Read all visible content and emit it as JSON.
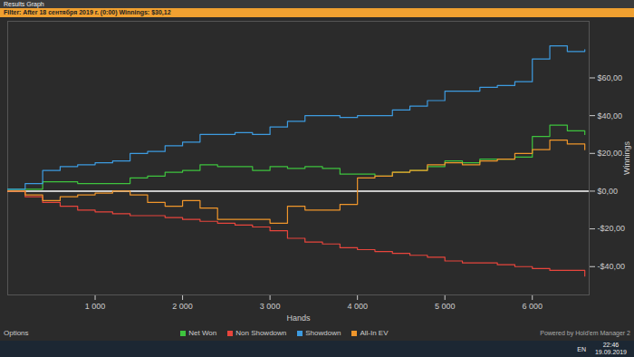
{
  "window": {
    "title": "Results Graph",
    "filter": "Filter: After 18 сентября 2019 г. (0:00)  Winnings: $30,12",
    "options": "Options",
    "powered_by": "Powered by Hold'em Manager 2",
    "language": "EN",
    "time": "22:46",
    "date": "19.09.2019"
  },
  "chart_data": {
    "type": "line",
    "xlabel": "Hands",
    "ylabel": "Winnings",
    "x": [
      0,
      200,
      400,
      600,
      800,
      1000,
      1200,
      1400,
      1600,
      1800,
      2000,
      2200,
      2400,
      2600,
      2800,
      3000,
      3200,
      3400,
      3600,
      3800,
      4000,
      4200,
      4400,
      4600,
      4800,
      5000,
      5200,
      5400,
      5600,
      5800,
      6000,
      6200,
      6400,
      6600
    ],
    "series": [
      {
        "name": "Net Won",
        "color": "#3ec43e",
        "values": [
          1,
          1,
          5,
          5,
          4,
          4,
          4,
          7,
          8,
          10,
          11,
          14,
          13,
          13,
          11,
          13,
          12,
          13,
          12,
          9,
          9,
          8,
          10,
          11,
          13,
          16,
          15,
          17,
          17,
          18,
          29,
          35,
          32,
          30
        ]
      },
      {
        "name": "Non Showdown",
        "color": "#e8453c",
        "values": [
          0,
          -3,
          -6,
          -8,
          -10,
          -11,
          -12,
          -13,
          -13,
          -14,
          -15,
          -16,
          -17,
          -18,
          -19,
          -21,
          -25,
          -27,
          -28,
          -30,
          -31,
          -32,
          -33,
          -34,
          -35,
          -37,
          -38,
          -38,
          -39,
          -40,
          -41,
          -42,
          -42,
          -45
        ]
      },
      {
        "name": "Showdown",
        "color": "#3d9be0",
        "values": [
          1,
          4,
          11,
          13,
          14,
          15,
          16,
          20,
          21,
          24,
          26,
          30,
          30,
          31,
          30,
          34,
          37,
          40,
          40,
          39,
          40,
          40,
          43,
          45,
          48,
          53,
          53,
          55,
          56,
          58,
          70,
          77,
          74,
          75
        ]
      },
      {
        "name": "All-In EV",
        "color": "#f0962b",
        "values": [
          0,
          -2,
          -5,
          -3,
          -2,
          -1,
          0,
          -2,
          -6,
          -8,
          -5,
          -9,
          -15,
          -15,
          -15,
          -17,
          -8,
          -10,
          -10,
          -7,
          7,
          8,
          10,
          11,
          14,
          15,
          14,
          16,
          17,
          20,
          22,
          27,
          25,
          22
        ]
      }
    ],
    "xlim": [
      0,
      6650
    ],
    "xticks": [
      {
        "value": 1000,
        "label": "1 000"
      },
      {
        "value": 2000,
        "label": "2 000"
      },
      {
        "value": 3000,
        "label": "3 000"
      },
      {
        "value": 4000,
        "label": "4 000"
      },
      {
        "value": 5000,
        "label": "5 000"
      },
      {
        "value": 6000,
        "label": "6 000"
      }
    ],
    "ylim": [
      -55,
      90
    ],
    "yticks": [
      {
        "value": -40,
        "label": "-$40,00"
      },
      {
        "value": -20,
        "label": "-$20,00"
      },
      {
        "value": 0,
        "label": "$0,00"
      },
      {
        "value": 20,
        "label": "$20,00"
      },
      {
        "value": 40,
        "label": "$40,00"
      },
      {
        "value": 60,
        "label": "$60,00"
      }
    ],
    "grid": false,
    "legend": "bottom",
    "line_style": "step"
  }
}
